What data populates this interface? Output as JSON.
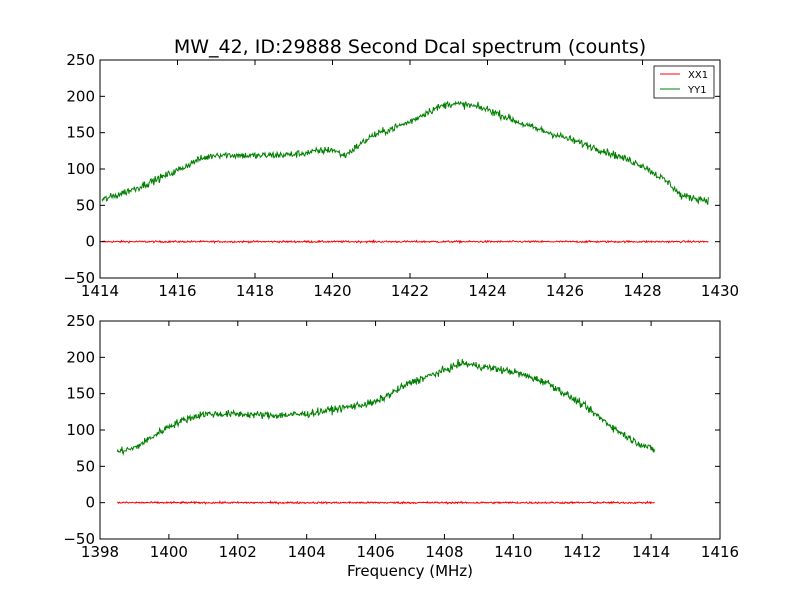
{
  "figure": {
    "title": "MW_42, ID:29888 Second Dcal spectrum (counts)"
  },
  "chart_data": [
    {
      "type": "line",
      "xlim": [
        1414,
        1430
      ],
      "ylim": [
        -50,
        250
      ],
      "xticks": [
        1414,
        1416,
        1418,
        1420,
        1422,
        1424,
        1426,
        1428,
        1430
      ],
      "yticks": [
        -50,
        0,
        50,
        100,
        150,
        200,
        250
      ],
      "xlabel": "",
      "ylabel": "",
      "grid": false,
      "legend": {
        "placement": "top-right",
        "entries": [
          "XX1",
          "YY1"
        ]
      },
      "series": [
        {
          "name": "XX1",
          "color": "#ff0000",
          "x_range": [
            1414.05,
            1429.7
          ],
          "noise": 1.2,
          "x": [
            1414.05,
            1429.7
          ],
          "y": [
            0,
            0
          ]
        },
        {
          "name": "YY1",
          "color": "#008000",
          "x_range": [
            1414.05,
            1429.7
          ],
          "noise": 5,
          "x": [
            1414.05,
            1415,
            1416,
            1416.5,
            1417,
            1418,
            1419,
            1420,
            1420.3,
            1421,
            1422,
            1422.5,
            1423,
            1423.5,
            1424,
            1425,
            1426,
            1427,
            1428,
            1428.7,
            1429,
            1429.7
          ],
          "y": [
            57,
            75,
            98,
            112,
            120,
            118,
            120,
            127,
            118,
            145,
            165,
            180,
            190,
            188,
            182,
            160,
            143,
            125,
            105,
            80,
            63,
            57
          ]
        }
      ]
    },
    {
      "type": "line",
      "xlim": [
        1398,
        1416
      ],
      "ylim": [
        -50,
        250
      ],
      "xticks": [
        1398,
        1400,
        1402,
        1404,
        1406,
        1408,
        1410,
        1412,
        1414,
        1416
      ],
      "yticks": [
        -50,
        0,
        50,
        100,
        150,
        200,
        250
      ],
      "xlabel": "Frequency (MHz)",
      "ylabel": "",
      "grid": false,
      "series": [
        {
          "name": "XX1",
          "color": "#ff0000",
          "x_range": [
            1398.5,
            1414.1
          ],
          "noise": 1.2,
          "x": [
            1398.5,
            1414.1
          ],
          "y": [
            0,
            0
          ]
        },
        {
          "name": "YY1",
          "color": "#008000",
          "x_range": [
            1398.5,
            1414.1
          ],
          "noise": 5,
          "x": [
            1398.5,
            1399,
            1399.5,
            1400,
            1400.5,
            1401,
            1402,
            1403,
            1404,
            1405,
            1406,
            1407,
            1408,
            1408.5,
            1409,
            1410,
            1411,
            1412,
            1413,
            1413.5,
            1414.1
          ],
          "y": [
            70,
            75,
            90,
            105,
            115,
            122,
            122,
            120,
            122,
            130,
            138,
            165,
            182,
            192,
            188,
            180,
            165,
            135,
            100,
            85,
            72
          ]
        }
      ]
    }
  ]
}
